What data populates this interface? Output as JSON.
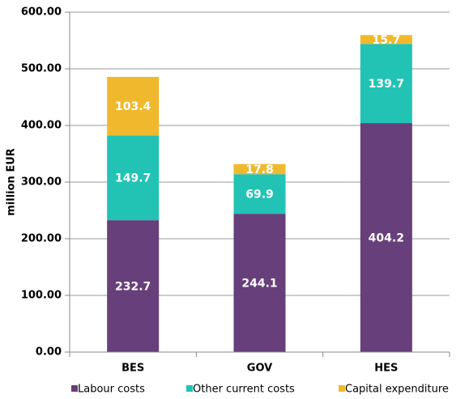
{
  "chart_data": {
    "type": "stacked_bar",
    "y_label": "million EUR",
    "categories": [
      "BES",
      "GOV",
      "HES"
    ],
    "series": [
      {
        "name": "Labour costs",
        "color": "#673f7a",
        "values": [
          232.7,
          244.1,
          404.2
        ]
      },
      {
        "name": "Other current costs",
        "color": "#22c3b5",
        "values": [
          149.7,
          69.9,
          139.7
        ]
      },
      {
        "name": "Capital expenditure",
        "color": "#f0b92d",
        "values": [
          103.4,
          17.8,
          15.7
        ]
      }
    ],
    "ylim": [
      0,
      600
    ],
    "yticks": [
      {
        "value": 0,
        "label": "0.00"
      },
      {
        "value": 100,
        "label": "100.00"
      },
      {
        "value": 200,
        "label": "200.00"
      },
      {
        "value": 300,
        "label": "300.00"
      },
      {
        "value": 400,
        "label": "400.00"
      },
      {
        "value": 500,
        "label": "500.00"
      },
      {
        "value": 600,
        "label": "600.00"
      }
    ],
    "grid": true
  }
}
